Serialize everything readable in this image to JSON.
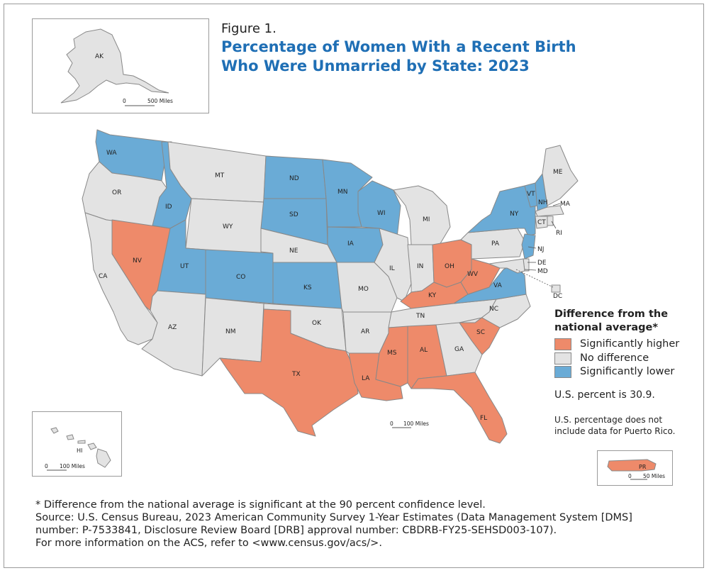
{
  "figure_label": "Figure 1.",
  "title_line1": "Percentage of Women With a Recent Birth",
  "title_line2": "Who Were Unmarried by State: 2023",
  "colors": {
    "higher": "#ee8a6a",
    "no_difference": "#e3e3e3",
    "lower": "#6aabd6",
    "title": "#1f6fb5"
  },
  "legend": {
    "title_line1": "Difference from the",
    "title_line2": "national average*",
    "items": [
      {
        "label": "Significantly higher",
        "category": "higher"
      },
      {
        "label": "No difference",
        "category": "no_difference"
      },
      {
        "label": "Significantly lower",
        "category": "lower"
      }
    ]
  },
  "us_percent_text": "U.S. percent is 30.9.",
  "note_line1": "U.S. percentage does not",
  "note_line2": "include data for Puerto Rico.",
  "scale_bars": {
    "alaska": {
      "zero": "0",
      "distance": "500 Miles"
    },
    "conus": {
      "zero": "0",
      "distance": "100 Miles"
    },
    "hawaii": {
      "zero": "0",
      "distance": "100 Miles"
    },
    "puerto_rico": {
      "zero": "0",
      "distance": "50 Miles"
    }
  },
  "states": [
    {
      "abbr": "AK",
      "category": "no_difference"
    },
    {
      "abbr": "HI",
      "category": "no_difference"
    },
    {
      "abbr": "PR",
      "category": "higher"
    },
    {
      "abbr": "WA",
      "category": "lower"
    },
    {
      "abbr": "OR",
      "category": "no_difference"
    },
    {
      "abbr": "CA",
      "category": "no_difference"
    },
    {
      "abbr": "NV",
      "category": "higher"
    },
    {
      "abbr": "ID",
      "category": "lower"
    },
    {
      "abbr": "MT",
      "category": "no_difference"
    },
    {
      "abbr": "WY",
      "category": "no_difference"
    },
    {
      "abbr": "UT",
      "category": "lower"
    },
    {
      "abbr": "AZ",
      "category": "no_difference"
    },
    {
      "abbr": "CO",
      "category": "lower"
    },
    {
      "abbr": "NM",
      "category": "no_difference"
    },
    {
      "abbr": "ND",
      "category": "lower"
    },
    {
      "abbr": "SD",
      "category": "lower"
    },
    {
      "abbr": "NE",
      "category": "no_difference"
    },
    {
      "abbr": "KS",
      "category": "lower"
    },
    {
      "abbr": "OK",
      "category": "no_difference"
    },
    {
      "abbr": "TX",
      "category": "higher"
    },
    {
      "abbr": "MN",
      "category": "lower"
    },
    {
      "abbr": "IA",
      "category": "lower"
    },
    {
      "abbr": "MO",
      "category": "no_difference"
    },
    {
      "abbr": "AR",
      "category": "no_difference"
    },
    {
      "abbr": "LA",
      "category": "higher"
    },
    {
      "abbr": "WI",
      "category": "lower"
    },
    {
      "abbr": "IL",
      "category": "no_difference"
    },
    {
      "abbr": "MI",
      "category": "no_difference"
    },
    {
      "abbr": "IN",
      "category": "no_difference"
    },
    {
      "abbr": "OH",
      "category": "higher"
    },
    {
      "abbr": "KY",
      "category": "higher"
    },
    {
      "abbr": "TN",
      "category": "no_difference"
    },
    {
      "abbr": "MS",
      "category": "higher"
    },
    {
      "abbr": "AL",
      "category": "higher"
    },
    {
      "abbr": "GA",
      "category": "no_difference"
    },
    {
      "abbr": "FL",
      "category": "higher"
    },
    {
      "abbr": "SC",
      "category": "higher"
    },
    {
      "abbr": "NC",
      "category": "no_difference"
    },
    {
      "abbr": "VA",
      "category": "lower"
    },
    {
      "abbr": "WV",
      "category": "higher"
    },
    {
      "abbr": "PA",
      "category": "no_difference"
    },
    {
      "abbr": "NY",
      "category": "lower"
    },
    {
      "abbr": "VT",
      "category": "lower"
    },
    {
      "abbr": "NH",
      "category": "lower"
    },
    {
      "abbr": "ME",
      "category": "no_difference"
    },
    {
      "abbr": "MA",
      "category": "no_difference"
    },
    {
      "abbr": "CT",
      "category": "no_difference"
    },
    {
      "abbr": "RI",
      "category": "no_difference"
    },
    {
      "abbr": "NJ",
      "category": "lower"
    },
    {
      "abbr": "DE",
      "category": "no_difference"
    },
    {
      "abbr": "MD",
      "category": "no_difference"
    },
    {
      "abbr": "DC",
      "category": "no_difference"
    }
  ],
  "footnote": {
    "line1": "* Difference from the national average is significant at the 90 percent confidence level.",
    "line2": "Source: U.S. Census Bureau, 2023 American Community Survey 1-Year Estimates (Data Management System [DMS]",
    "line3": "number: P-7533841, Disclosure Review Board [DRB] approval number: CBDRB-FY25-SEHSD003-107).",
    "line4": "For more information on the ACS, refer to <www.census.gov/acs/>."
  }
}
